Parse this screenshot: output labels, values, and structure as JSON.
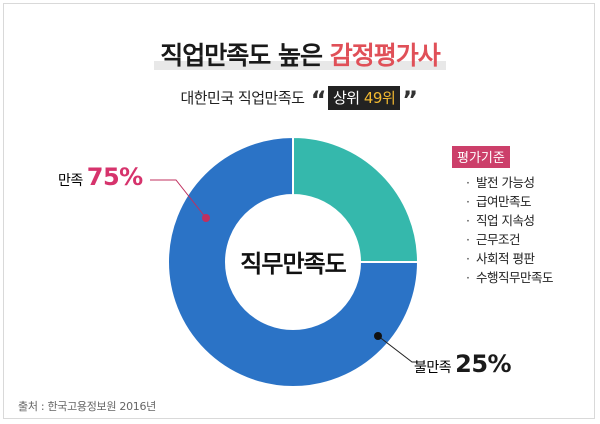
{
  "title": {
    "main": "직업만족도 높은 ",
    "accent": "감정평가사"
  },
  "subtitle": {
    "text": "대한민국 직업만족도",
    "open_quote": "“",
    "rank_prefix": "상위 ",
    "rank_number": "49위",
    "close_quote": "”"
  },
  "chart_data": {
    "type": "pie",
    "donut": true,
    "center_label": "직무만족도",
    "slices": [
      {
        "name": "만족",
        "value": 75,
        "label": "75%",
        "color": "#2b73c6",
        "label_color": "#d6336c"
      },
      {
        "name": "불만족",
        "value": 25,
        "label": "25%",
        "color": "#35b8ac",
        "label_color": "#1a1a1a"
      }
    ]
  },
  "criteria": {
    "heading": "평가기준",
    "items": [
      "발전 가능성",
      "급여만족도",
      "직업 지속성",
      "근무조건",
      "사회적 평판",
      "수행직무만족도"
    ]
  },
  "source": "출처 : 한국고용정보원 2016년"
}
